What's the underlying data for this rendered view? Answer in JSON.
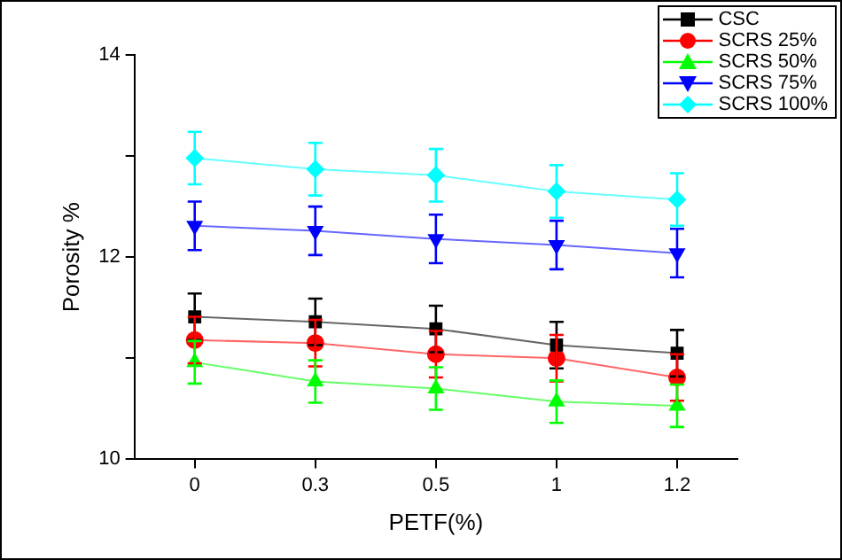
{
  "chart_data": {
    "type": "line",
    "xlabel": "PETF(%)",
    "ylabel": "Porosity %",
    "categories": [
      "0",
      "0.3",
      "0.5",
      "1",
      "1.2"
    ],
    "ylim": [
      10,
      14
    ],
    "yticks": [
      10,
      {
        "value": 11,
        "label": null
      },
      12,
      {
        "value": 13,
        "label": null
      },
      14
    ],
    "grid": false,
    "legend": "top right",
    "series": [
      {
        "name": "CSC",
        "color": "#000000",
        "marker": "square",
        "values": [
          11.41,
          11.36,
          11.29,
          11.13,
          11.05
        ],
        "errors": [
          0.23,
          0.23,
          0.23,
          0.23,
          0.23
        ]
      },
      {
        "name": "SCRS 25%",
        "color": "#ff0000",
        "marker": "circle",
        "values": [
          11.18,
          11.15,
          11.04,
          11.0,
          10.81
        ],
        "errors": [
          0.23,
          0.23,
          0.23,
          0.23,
          0.23
        ]
      },
      {
        "name": "SCRS 50%",
        "color": "#00ff00",
        "marker": "triangle",
        "values": [
          10.96,
          10.77,
          10.7,
          10.57,
          10.53
        ],
        "errors": [
          0.21,
          0.21,
          0.21,
          0.21,
          0.21
        ]
      },
      {
        "name": "SCRS 75%",
        "color": "#0000ff",
        "marker": "triangle-down",
        "values": [
          12.31,
          12.26,
          12.18,
          12.12,
          12.04
        ],
        "errors": [
          0.24,
          0.24,
          0.24,
          0.24,
          0.24
        ]
      },
      {
        "name": "SCRS 100%",
        "color": "#00ffff",
        "marker": "diamond",
        "values": [
          12.98,
          12.87,
          12.81,
          12.65,
          12.57
        ],
        "errors": [
          0.26,
          0.26,
          0.26,
          0.26,
          0.26
        ]
      }
    ]
  }
}
